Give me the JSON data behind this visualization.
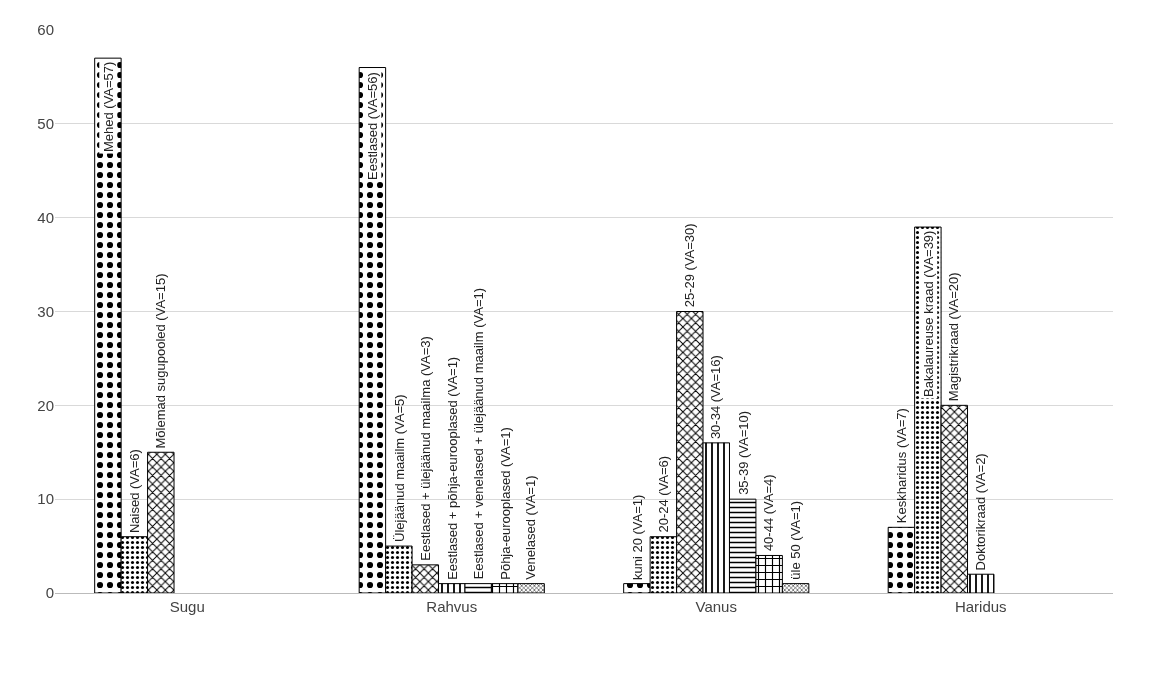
{
  "chart_data": {
    "type": "bar",
    "categories": [
      "Sugu",
      "Rahvus",
      "Vanus",
      "Haridus"
    ],
    "series": [
      {
        "color": "#000000",
        "values": [
          57,
          56,
          1,
          7
        ],
        "value_labels": [
          "Mehed (VA=57)",
          "Eestlased (VA=56)",
          "kuni 20 (VA=1)",
          "Keskharidus (VA=7)"
        ]
      },
      {
        "color": "#000000",
        "values": [
          6,
          5,
          6,
          39
        ],
        "value_labels": [
          "Naised (VA=6)",
          "Ülejäänud maailm (VA=5)",
          "20-24 (VA=6)",
          "Bakalaureuse kraad (VA=39)"
        ]
      },
      {
        "color": "#000000",
        "values": [
          15,
          3,
          30,
          20
        ],
        "value_labels": [
          "Mõlemad sugupooled (VA=15)",
          "Eestlased + ülejäänud maailma (VA=3)",
          "25-29 (VA=30)",
          "Magistrikraad (VA=20)"
        ]
      },
      {
        "color": "#000000",
        "values": [
          null,
          1,
          16,
          2
        ],
        "value_labels": [
          null,
          "Eestlased + põhja-eurooplased (VA=1)",
          "30-34 (VA=16)",
          "Doktorikraad (VA=2)"
        ]
      },
      {
        "color": "#000000",
        "values": [
          null,
          1,
          10,
          null
        ],
        "value_labels": [
          null,
          "Eestlased + venelased + ülejäänud maailm (VA=1)",
          "35-39 (VA=10)",
          null
        ]
      },
      {
        "color": "#000000",
        "values": [
          null,
          1,
          4,
          null
        ],
        "value_labels": [
          null,
          "Põhja-eurooplased (VA=1)",
          "40-44 (VA=4)",
          null
        ]
      },
      {
        "color": "#000000",
        "values": [
          null,
          1,
          1,
          null
        ],
        "value_labels": [
          null,
          "Venelased (VA=1)",
          "üle 50 (VA=1)",
          null
        ]
      }
    ],
    "ylim": [
      0,
      60
    ],
    "yticks": [
      0,
      10,
      20,
      30,
      40,
      50,
      60
    ],
    "grid": "y"
  }
}
